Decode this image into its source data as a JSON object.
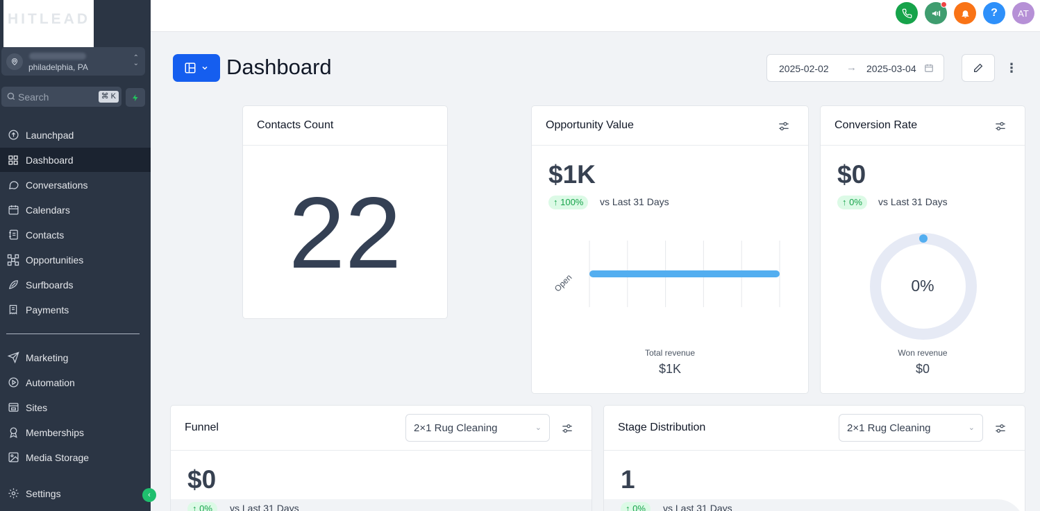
{
  "brand": {
    "logo_text": "HITLEAD"
  },
  "location": {
    "city": "philadelphia, PA"
  },
  "search": {
    "placeholder": "Search",
    "shortcut": "⌘ K"
  },
  "sidebar": {
    "items": [
      {
        "label": "Launchpad",
        "icon": "rocket-icon"
      },
      {
        "label": "Dashboard",
        "icon": "grid-icon",
        "active": true
      },
      {
        "label": "Conversations",
        "icon": "chat-icon"
      },
      {
        "label": "Calendars",
        "icon": "calendar-icon"
      },
      {
        "label": "Contacts",
        "icon": "address-book-icon"
      },
      {
        "label": "Opportunities",
        "icon": "network-icon"
      },
      {
        "label": "Surfboards",
        "icon": "surfboard-icon"
      },
      {
        "label": "Payments",
        "icon": "receipt-icon"
      }
    ],
    "items2": [
      {
        "label": "Marketing",
        "icon": "send-icon"
      },
      {
        "label": "Automation",
        "icon": "play-circle-icon"
      },
      {
        "label": "Sites",
        "icon": "browser-icon"
      },
      {
        "label": "Memberships",
        "icon": "badge-icon"
      },
      {
        "label": "Media Storage",
        "icon": "image-icon"
      }
    ],
    "settings": "Settings"
  },
  "topbar": {
    "avatar": "AT",
    "help": "?",
    "colors": {
      "phone": "#16a34a",
      "announce": "#3f9d6f",
      "bell": "#f97316",
      "help": "#2e90fa",
      "avatar": "#b690d6"
    }
  },
  "header": {
    "title": "Dashboard",
    "date_start": "2025-02-02",
    "date_end": "2025-03-04"
  },
  "contacts_card": {
    "title": "Contacts Count",
    "value": "22"
  },
  "opportunity_card": {
    "title": "Opportunity Value",
    "value": "$1K",
    "change": "↑ 100%",
    "vs": "vs Last 31 Days",
    "total_label": "Total revenue",
    "total_value": "$1K"
  },
  "chart_data": {
    "type": "bar",
    "orientation": "horizontal",
    "categories": [
      "Open"
    ],
    "values": [
      1000
    ],
    "xlim": [
      0,
      1000
    ],
    "x_ticks": [
      "$0",
      "$200",
      "$400",
      "$600",
      "$800",
      "$1K"
    ],
    "grid": true,
    "color": "#53aef0"
  },
  "conversion_card": {
    "title": "Conversion Rate",
    "value": "$0",
    "change": "↑ 0%",
    "vs": "vs Last 31 Days",
    "gauge_percent": 0,
    "gauge_label": "0%",
    "won_label": "Won revenue",
    "won_value": "$0"
  },
  "funnel_card": {
    "title": "Funnel",
    "pipeline": "2×1 Rug Cleaning",
    "value": "$0",
    "change": "↑ 0%",
    "vs": "vs Last 31 Days"
  },
  "stage_card": {
    "title": "Stage Distribution",
    "pipeline": "2×1 Rug Cleaning",
    "value": "1",
    "change": "↑ 0%",
    "vs": "vs Last 31 Days"
  }
}
